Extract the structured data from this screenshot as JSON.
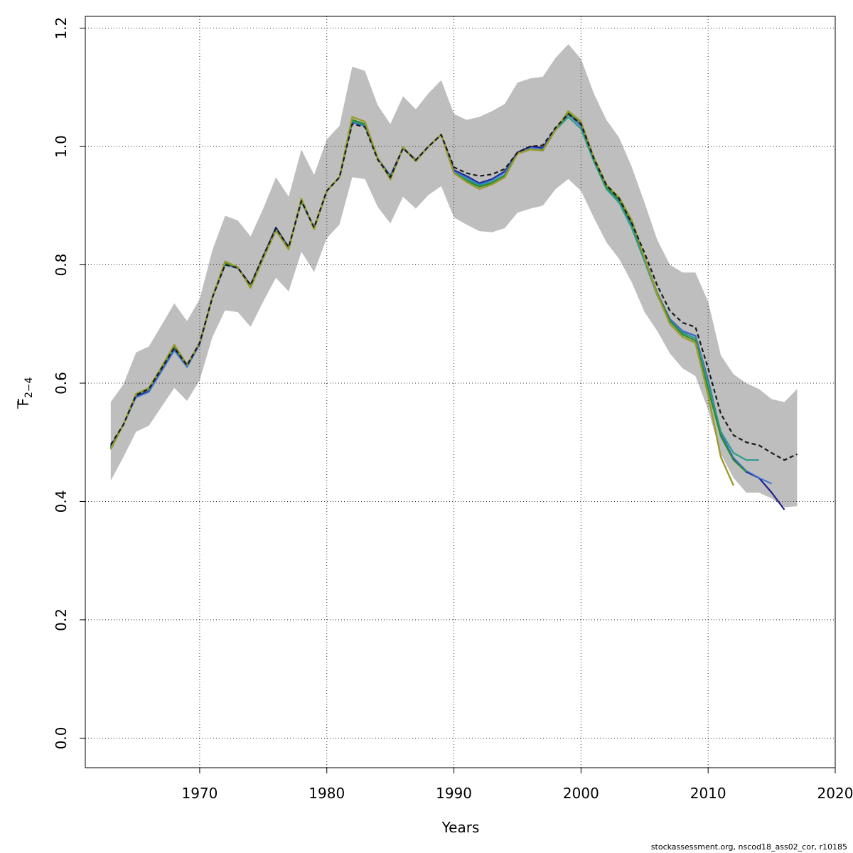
{
  "footer_text": "stockassessment.org, nscod18_ass02_cor, r10185",
  "chart_data": {
    "type": "line",
    "title": "",
    "xlabel": "Years",
    "ylabel": {
      "base": "F",
      "sub": "2−4"
    },
    "xlim": [
      1961,
      2020
    ],
    "ylim": [
      -0.05,
      1.22
    ],
    "x_ticks": [
      1970,
      1980,
      1990,
      2000,
      2010,
      2020
    ],
    "x_tick_labels": [
      "1970",
      "1980",
      "1990",
      "2000",
      "2010",
      "2020"
    ],
    "y_ticks": [
      0.0,
      0.2,
      0.4,
      0.6,
      0.8,
      1.0,
      1.2
    ],
    "y_tick_labels": [
      "0.0",
      "0.2",
      "0.4",
      "0.6",
      "0.8",
      "1.0",
      "1.2"
    ],
    "grid": true,
    "band": {
      "color": "#bebebe",
      "x": [
        1963,
        1964,
        1965,
        1966,
        1967,
        1968,
        1969,
        1970,
        1971,
        1972,
        1973,
        1974,
        1975,
        1976,
        1977,
        1978,
        1979,
        1980,
        1981,
        1982,
        1983,
        1984,
        1985,
        1986,
        1987,
        1988,
        1989,
        1990,
        1991,
        1992,
        1993,
        1994,
        1995,
        1996,
        1997,
        1998,
        1999,
        2000,
        2001,
        2002,
        2003,
        2004,
        2005,
        2006,
        2007,
        2008,
        2009,
        2010,
        2011,
        2012,
        2013,
        2014,
        2015,
        2016,
        2017
      ],
      "lower": [
        0.435,
        0.475,
        0.518,
        0.528,
        0.56,
        0.592,
        0.57,
        0.605,
        0.678,
        0.723,
        0.72,
        0.695,
        0.738,
        0.778,
        0.755,
        0.822,
        0.788,
        0.845,
        0.868,
        0.948,
        0.945,
        0.898,
        0.87,
        0.915,
        0.895,
        0.918,
        0.933,
        0.88,
        0.868,
        0.857,
        0.855,
        0.862,
        0.888,
        0.895,
        0.9,
        0.928,
        0.945,
        0.925,
        0.88,
        0.838,
        0.81,
        0.77,
        0.72,
        0.688,
        0.65,
        0.625,
        0.612,
        0.555,
        0.48,
        0.44,
        0.415,
        0.415,
        0.405,
        0.39,
        0.392
      ],
      "upper": [
        0.568,
        0.598,
        0.652,
        0.662,
        0.698,
        0.735,
        0.705,
        0.742,
        0.825,
        0.883,
        0.875,
        0.848,
        0.895,
        0.948,
        0.915,
        0.995,
        0.952,
        1.012,
        1.035,
        1.135,
        1.128,
        1.07,
        1.038,
        1.085,
        1.063,
        1.09,
        1.112,
        1.055,
        1.045,
        1.05,
        1.06,
        1.072,
        1.108,
        1.115,
        1.118,
        1.15,
        1.173,
        1.148,
        1.09,
        1.045,
        1.015,
        0.965,
        0.905,
        0.842,
        0.8,
        0.787,
        0.787,
        0.738,
        0.647,
        0.615,
        0.6,
        0.59,
        0.573,
        0.568,
        0.59
      ]
    },
    "series": [
      {
        "color": "#1a1a1a",
        "dashed": true,
        "width": 2.2,
        "x": [
          1963,
          1964,
          1965,
          1966,
          1967,
          1968,
          1969,
          1970,
          1971,
          1972,
          1973,
          1974,
          1975,
          1976,
          1977,
          1978,
          1979,
          1980,
          1981,
          1982,
          1983,
          1984,
          1985,
          1986,
          1987,
          1988,
          1989,
          1990,
          1991,
          1992,
          1993,
          1994,
          1995,
          1996,
          1997,
          1998,
          1999,
          2000,
          2001,
          2002,
          2003,
          2004,
          2005,
          2006,
          2007,
          2008,
          2009,
          2010,
          2011,
          2012,
          2013,
          2014,
          2015,
          2016,
          2017
        ],
        "y": [
          0.496,
          0.53,
          0.58,
          0.59,
          0.625,
          0.66,
          0.63,
          0.668,
          0.745,
          0.8,
          0.795,
          0.766,
          0.815,
          0.862,
          0.83,
          0.908,
          0.863,
          0.925,
          0.948,
          1.038,
          1.033,
          0.978,
          0.948,
          0.997,
          0.977,
          1.0,
          1.02,
          0.965,
          0.955,
          0.95,
          0.953,
          0.962,
          0.99,
          1.0,
          1.002,
          1.032,
          1.055,
          1.038,
          0.98,
          0.935,
          0.912,
          0.87,
          0.82,
          0.765,
          0.722,
          0.702,
          0.695,
          0.625,
          0.548,
          0.512,
          0.5,
          0.495,
          0.482,
          0.47,
          0.48
        ]
      },
      {
        "color": "#1f1f8f",
        "dashed": false,
        "width": 2.2,
        "x": [
          1963,
          1964,
          1965,
          1966,
          1967,
          1968,
          1969,
          1970,
          1971,
          1972,
          1973,
          1974,
          1975,
          1976,
          1977,
          1978,
          1979,
          1980,
          1981,
          1982,
          1983,
          1984,
          1985,
          1986,
          1987,
          1988,
          1989,
          1990,
          1991,
          1992,
          1993,
          1994,
          1995,
          1996,
          1997,
          1998,
          1999,
          2000,
          2001,
          2002,
          2003,
          2004,
          2005,
          2006,
          2007,
          2008,
          2009,
          2010,
          2011,
          2012,
          2013,
          2014,
          2015,
          2016
        ],
        "y": [
          0.493,
          0.53,
          0.578,
          0.586,
          0.622,
          0.656,
          0.628,
          0.666,
          0.745,
          0.802,
          0.795,
          0.766,
          0.814,
          0.863,
          0.829,
          0.908,
          0.862,
          0.925,
          0.948,
          1.042,
          1.036,
          0.98,
          0.95,
          0.998,
          0.977,
          1.0,
          1.02,
          0.96,
          0.95,
          0.938,
          0.945,
          0.958,
          0.99,
          1.0,
          0.998,
          1.03,
          1.055,
          1.035,
          0.978,
          0.93,
          0.908,
          0.867,
          0.81,
          0.752,
          0.708,
          0.688,
          0.68,
          0.605,
          0.515,
          0.472,
          0.45,
          0.44,
          0.415,
          0.386
        ]
      },
      {
        "color": "#3b6fd6",
        "dashed": false,
        "width": 1.8,
        "x": [
          1963,
          1964,
          1965,
          1966,
          1967,
          1968,
          1969,
          1970,
          1971,
          1972,
          1973,
          1974,
          1975,
          1976,
          1977,
          1978,
          1979,
          1980,
          1981,
          1982,
          1983,
          1984,
          1985,
          1986,
          1987,
          1988,
          1989,
          1990,
          1991,
          1992,
          1993,
          1994,
          1995,
          1996,
          1997,
          1998,
          1999,
          2000,
          2001,
          2002,
          2003,
          2004,
          2005,
          2006,
          2007,
          2008,
          2009,
          2010,
          2011,
          2012,
          2013,
          2014,
          2015
        ],
        "y": [
          0.492,
          0.53,
          0.576,
          0.585,
          0.62,
          0.655,
          0.627,
          0.665,
          0.744,
          0.8,
          0.794,
          0.765,
          0.813,
          0.86,
          0.828,
          0.907,
          0.861,
          0.925,
          0.948,
          1.04,
          1.035,
          0.979,
          0.949,
          0.997,
          0.976,
          1.0,
          1.02,
          0.958,
          0.948,
          0.936,
          0.943,
          0.956,
          0.988,
          0.998,
          0.996,
          1.03,
          1.055,
          1.035,
          0.978,
          0.93,
          0.908,
          0.866,
          0.81,
          0.752,
          0.708,
          0.688,
          0.68,
          0.605,
          0.515,
          0.474,
          0.452,
          0.44,
          0.43
        ]
      },
      {
        "color": "#2a9d8a",
        "dashed": false,
        "width": 2.2,
        "x": [
          1963,
          1964,
          1965,
          1966,
          1967,
          1968,
          1969,
          1970,
          1971,
          1972,
          1973,
          1974,
          1975,
          1976,
          1977,
          1978,
          1979,
          1980,
          1981,
          1982,
          1983,
          1984,
          1985,
          1986,
          1987,
          1988,
          1989,
          1990,
          1991,
          1992,
          1993,
          1994,
          1995,
          1996,
          1997,
          1998,
          1999,
          2000,
          2001,
          2002,
          2003,
          2004,
          2005,
          2006,
          2007,
          2008,
          2009,
          2010,
          2011,
          2012,
          2013,
          2014
        ],
        "y": [
          0.49,
          0.53,
          0.58,
          0.59,
          0.625,
          0.66,
          0.63,
          0.668,
          0.745,
          0.803,
          0.795,
          0.764,
          0.812,
          0.86,
          0.828,
          0.908,
          0.862,
          0.925,
          0.948,
          1.043,
          1.037,
          0.98,
          0.948,
          0.997,
          0.976,
          1.0,
          1.02,
          0.956,
          0.945,
          0.934,
          0.94,
          0.952,
          0.988,
          0.995,
          0.993,
          1.028,
          1.05,
          1.03,
          0.975,
          0.928,
          0.905,
          0.862,
          0.806,
          0.748,
          0.705,
          0.685,
          0.676,
          0.6,
          0.518,
          0.482,
          0.47,
          0.47
        ]
      },
      {
        "color": "#2e8b2e",
        "dashed": false,
        "width": 2.2,
        "x": [
          1963,
          1964,
          1965,
          1966,
          1967,
          1968,
          1969,
          1970,
          1971,
          1972,
          1973,
          1974,
          1975,
          1976,
          1977,
          1978,
          1979,
          1980,
          1981,
          1982,
          1983,
          1984,
          1985,
          1986,
          1987,
          1988,
          1989,
          1990,
          1991,
          1992,
          1993,
          1994,
          1995,
          1996,
          1997,
          1998,
          1999,
          2000,
          2001,
          2002,
          2003,
          2004,
          2005,
          2006,
          2007,
          2008,
          2009,
          2010,
          2011,
          2012,
          2013
        ],
        "y": [
          0.49,
          0.53,
          0.582,
          0.59,
          0.626,
          0.662,
          0.63,
          0.668,
          0.745,
          0.804,
          0.795,
          0.763,
          0.812,
          0.858,
          0.827,
          0.91,
          0.861,
          0.925,
          0.948,
          1.045,
          1.038,
          0.98,
          0.946,
          0.998,
          0.975,
          1.0,
          1.02,
          0.955,
          0.942,
          0.932,
          0.938,
          0.95,
          0.988,
          0.995,
          0.994,
          1.028,
          1.057,
          1.04,
          0.98,
          0.932,
          0.91,
          0.87,
          0.812,
          0.752,
          0.705,
          0.682,
          0.672,
          0.59,
          0.51,
          0.47,
          0.45
        ]
      },
      {
        "color": "#9c9a2c",
        "dashed": false,
        "width": 2.4,
        "x": [
          1963,
          1964,
          1965,
          1966,
          1967,
          1968,
          1969,
          1970,
          1971,
          1972,
          1973,
          1974,
          1975,
          1976,
          1977,
          1978,
          1979,
          1980,
          1981,
          1982,
          1983,
          1984,
          1985,
          1986,
          1987,
          1988,
          1989,
          1990,
          1991,
          1992,
          1993,
          1994,
          1995,
          1996,
          1997,
          1998,
          1999,
          2000,
          2001,
          2002,
          2003,
          2004,
          2005,
          2006,
          2007,
          2008,
          2009,
          2010,
          2011,
          2012
        ],
        "y": [
          0.488,
          0.53,
          0.582,
          0.592,
          0.627,
          0.665,
          0.631,
          0.668,
          0.745,
          0.806,
          0.796,
          0.761,
          0.811,
          0.858,
          0.826,
          0.912,
          0.86,
          0.925,
          0.948,
          1.05,
          1.042,
          0.981,
          0.944,
          0.999,
          0.975,
          1.0,
          1.02,
          0.955,
          0.94,
          0.928,
          0.936,
          0.948,
          0.988,
          0.995,
          0.993,
          1.028,
          1.06,
          1.042,
          0.982,
          0.935,
          0.914,
          0.875,
          0.812,
          0.75,
          0.7,
          0.678,
          0.668,
          0.58,
          0.475,
          0.427
        ]
      }
    ]
  }
}
